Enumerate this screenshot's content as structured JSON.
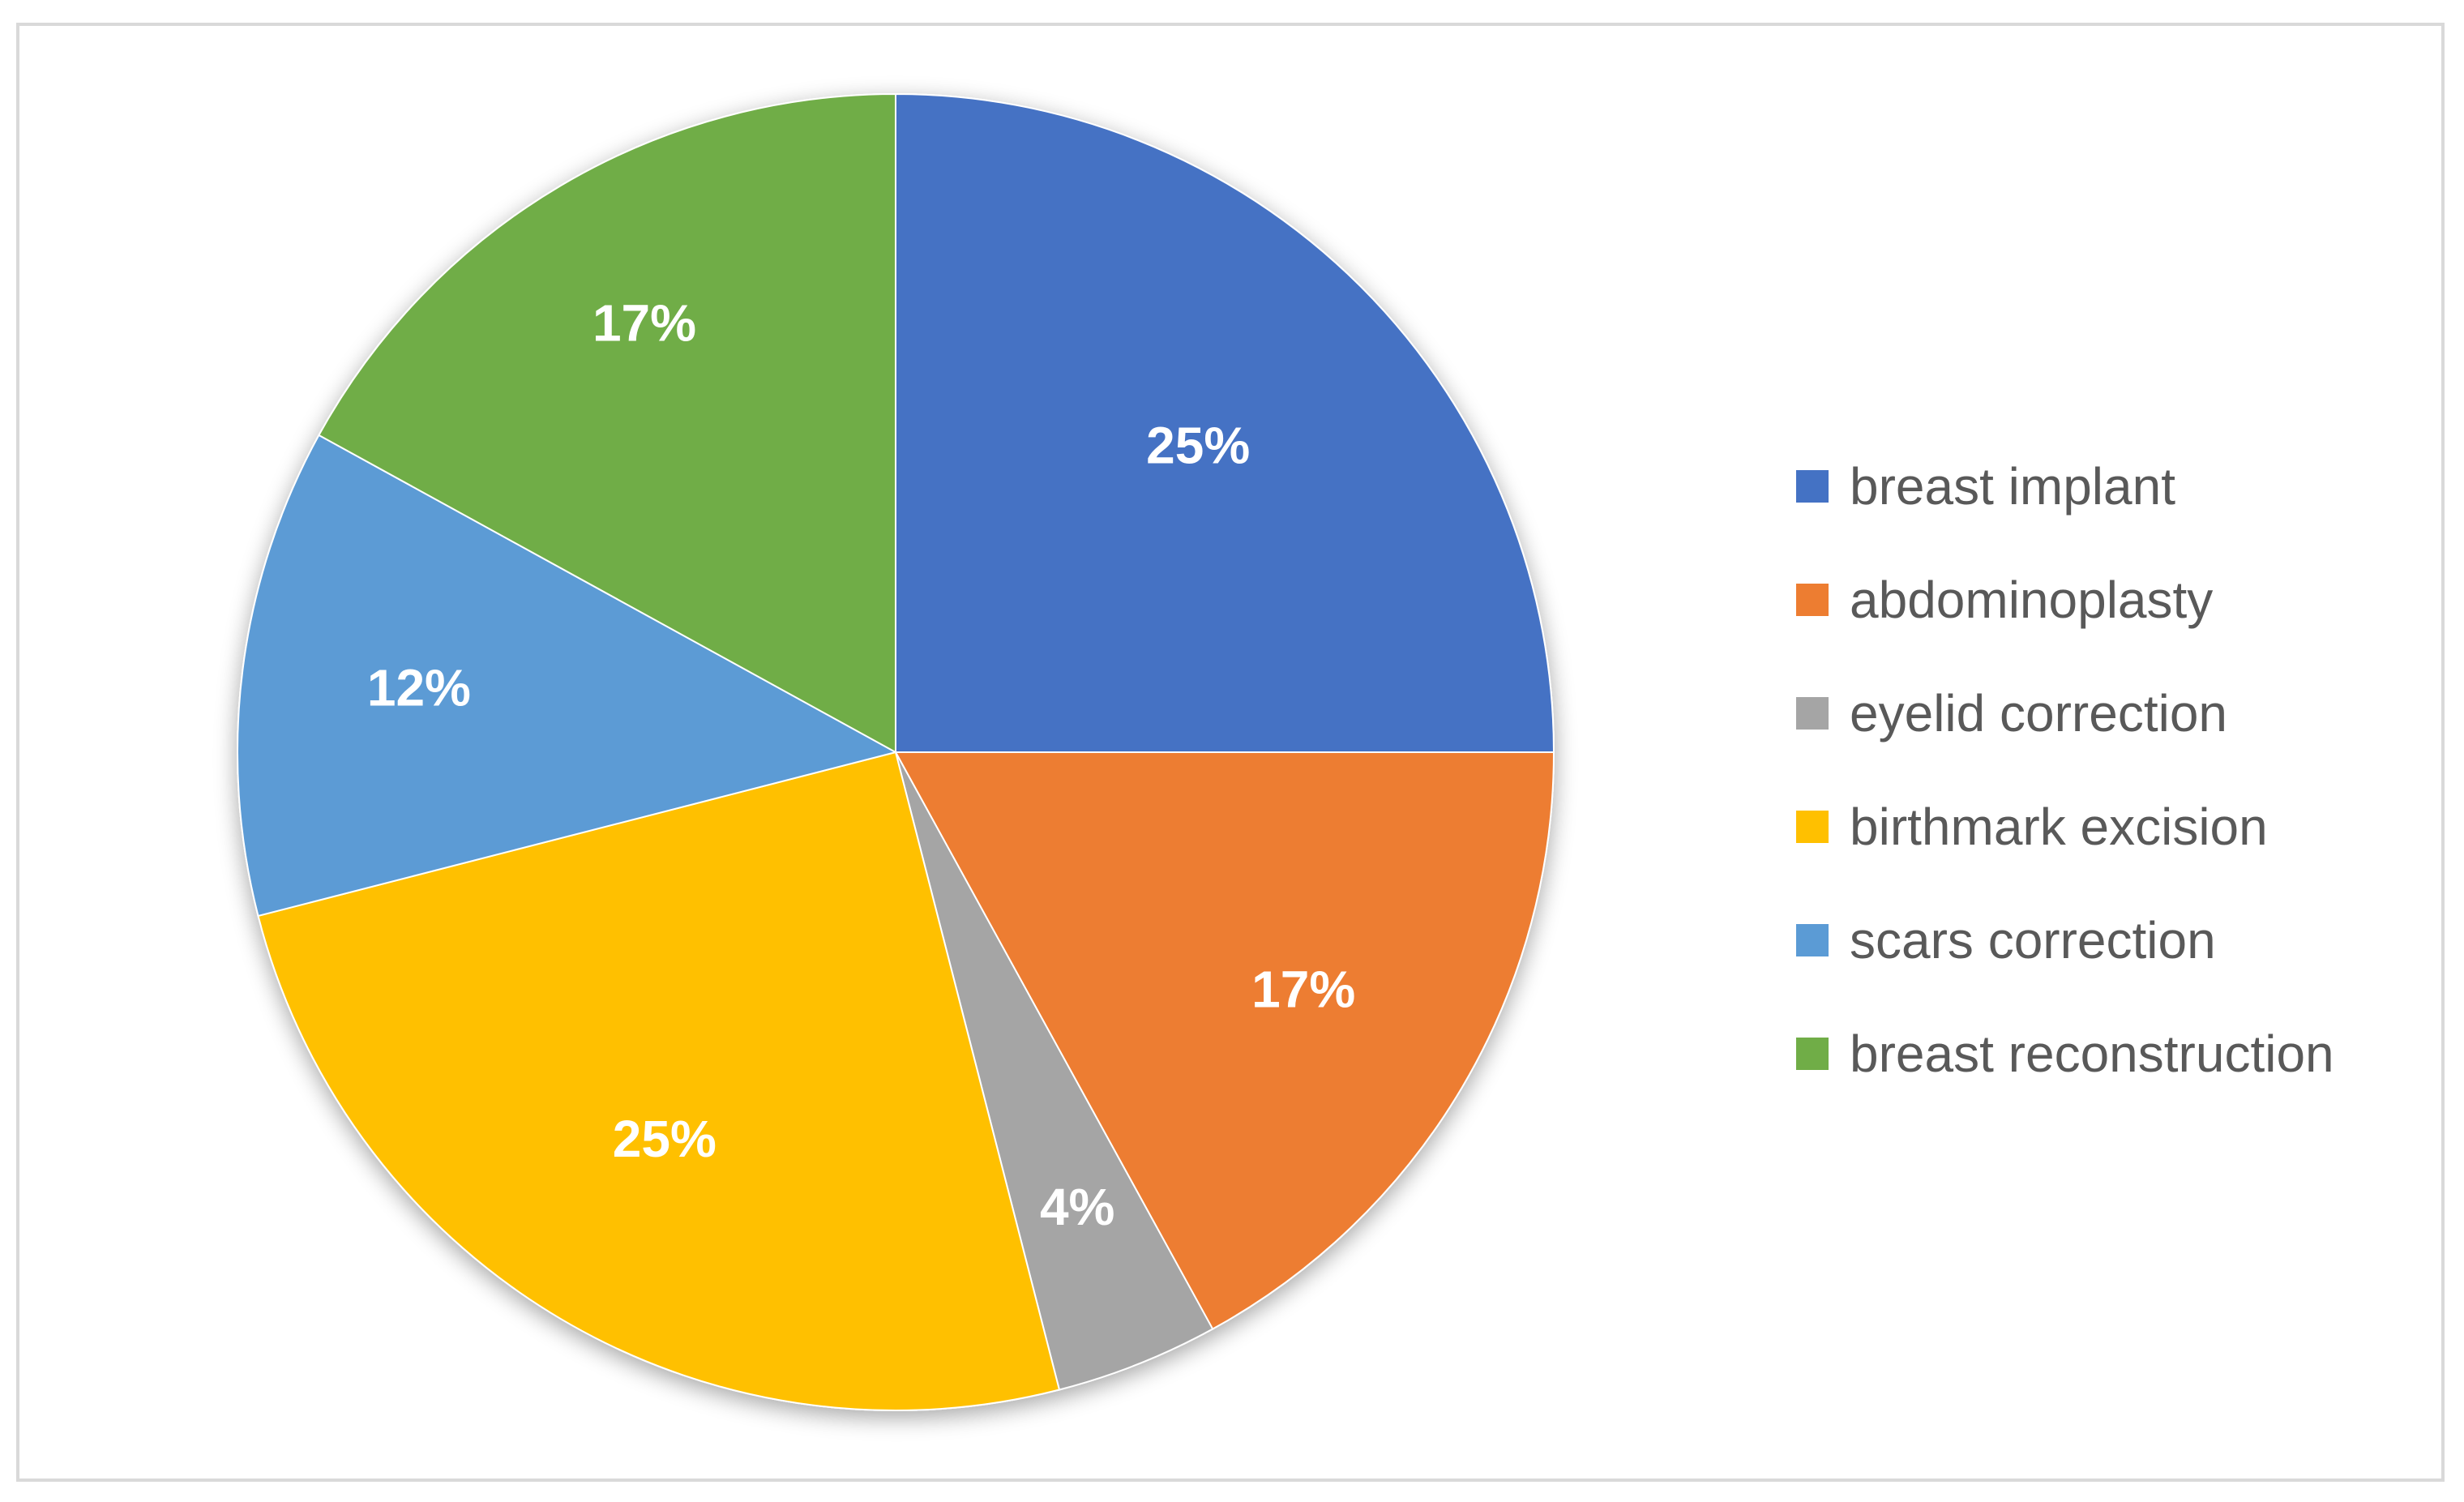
{
  "chart_data": {
    "type": "pie",
    "categories": [
      "breast implant",
      "abdominoplasty",
      "eyelid correction",
      "birthmark excision",
      "scars correction",
      "breast reconstruction"
    ],
    "values": [
      25,
      17,
      4,
      25,
      12,
      17
    ],
    "data_labels": [
      "25%",
      "17%",
      "4%",
      "25%",
      "12%",
      "17%"
    ],
    "colors": [
      "#4472C4",
      "#ED7D31",
      "#A5A5A5",
      "#FFC000",
      "#5B9BD5",
      "#70AD47"
    ],
    "start_angle": "12 o'clock",
    "direction": "clockwise",
    "legend_position": "right",
    "title": "",
    "unit": "%"
  }
}
